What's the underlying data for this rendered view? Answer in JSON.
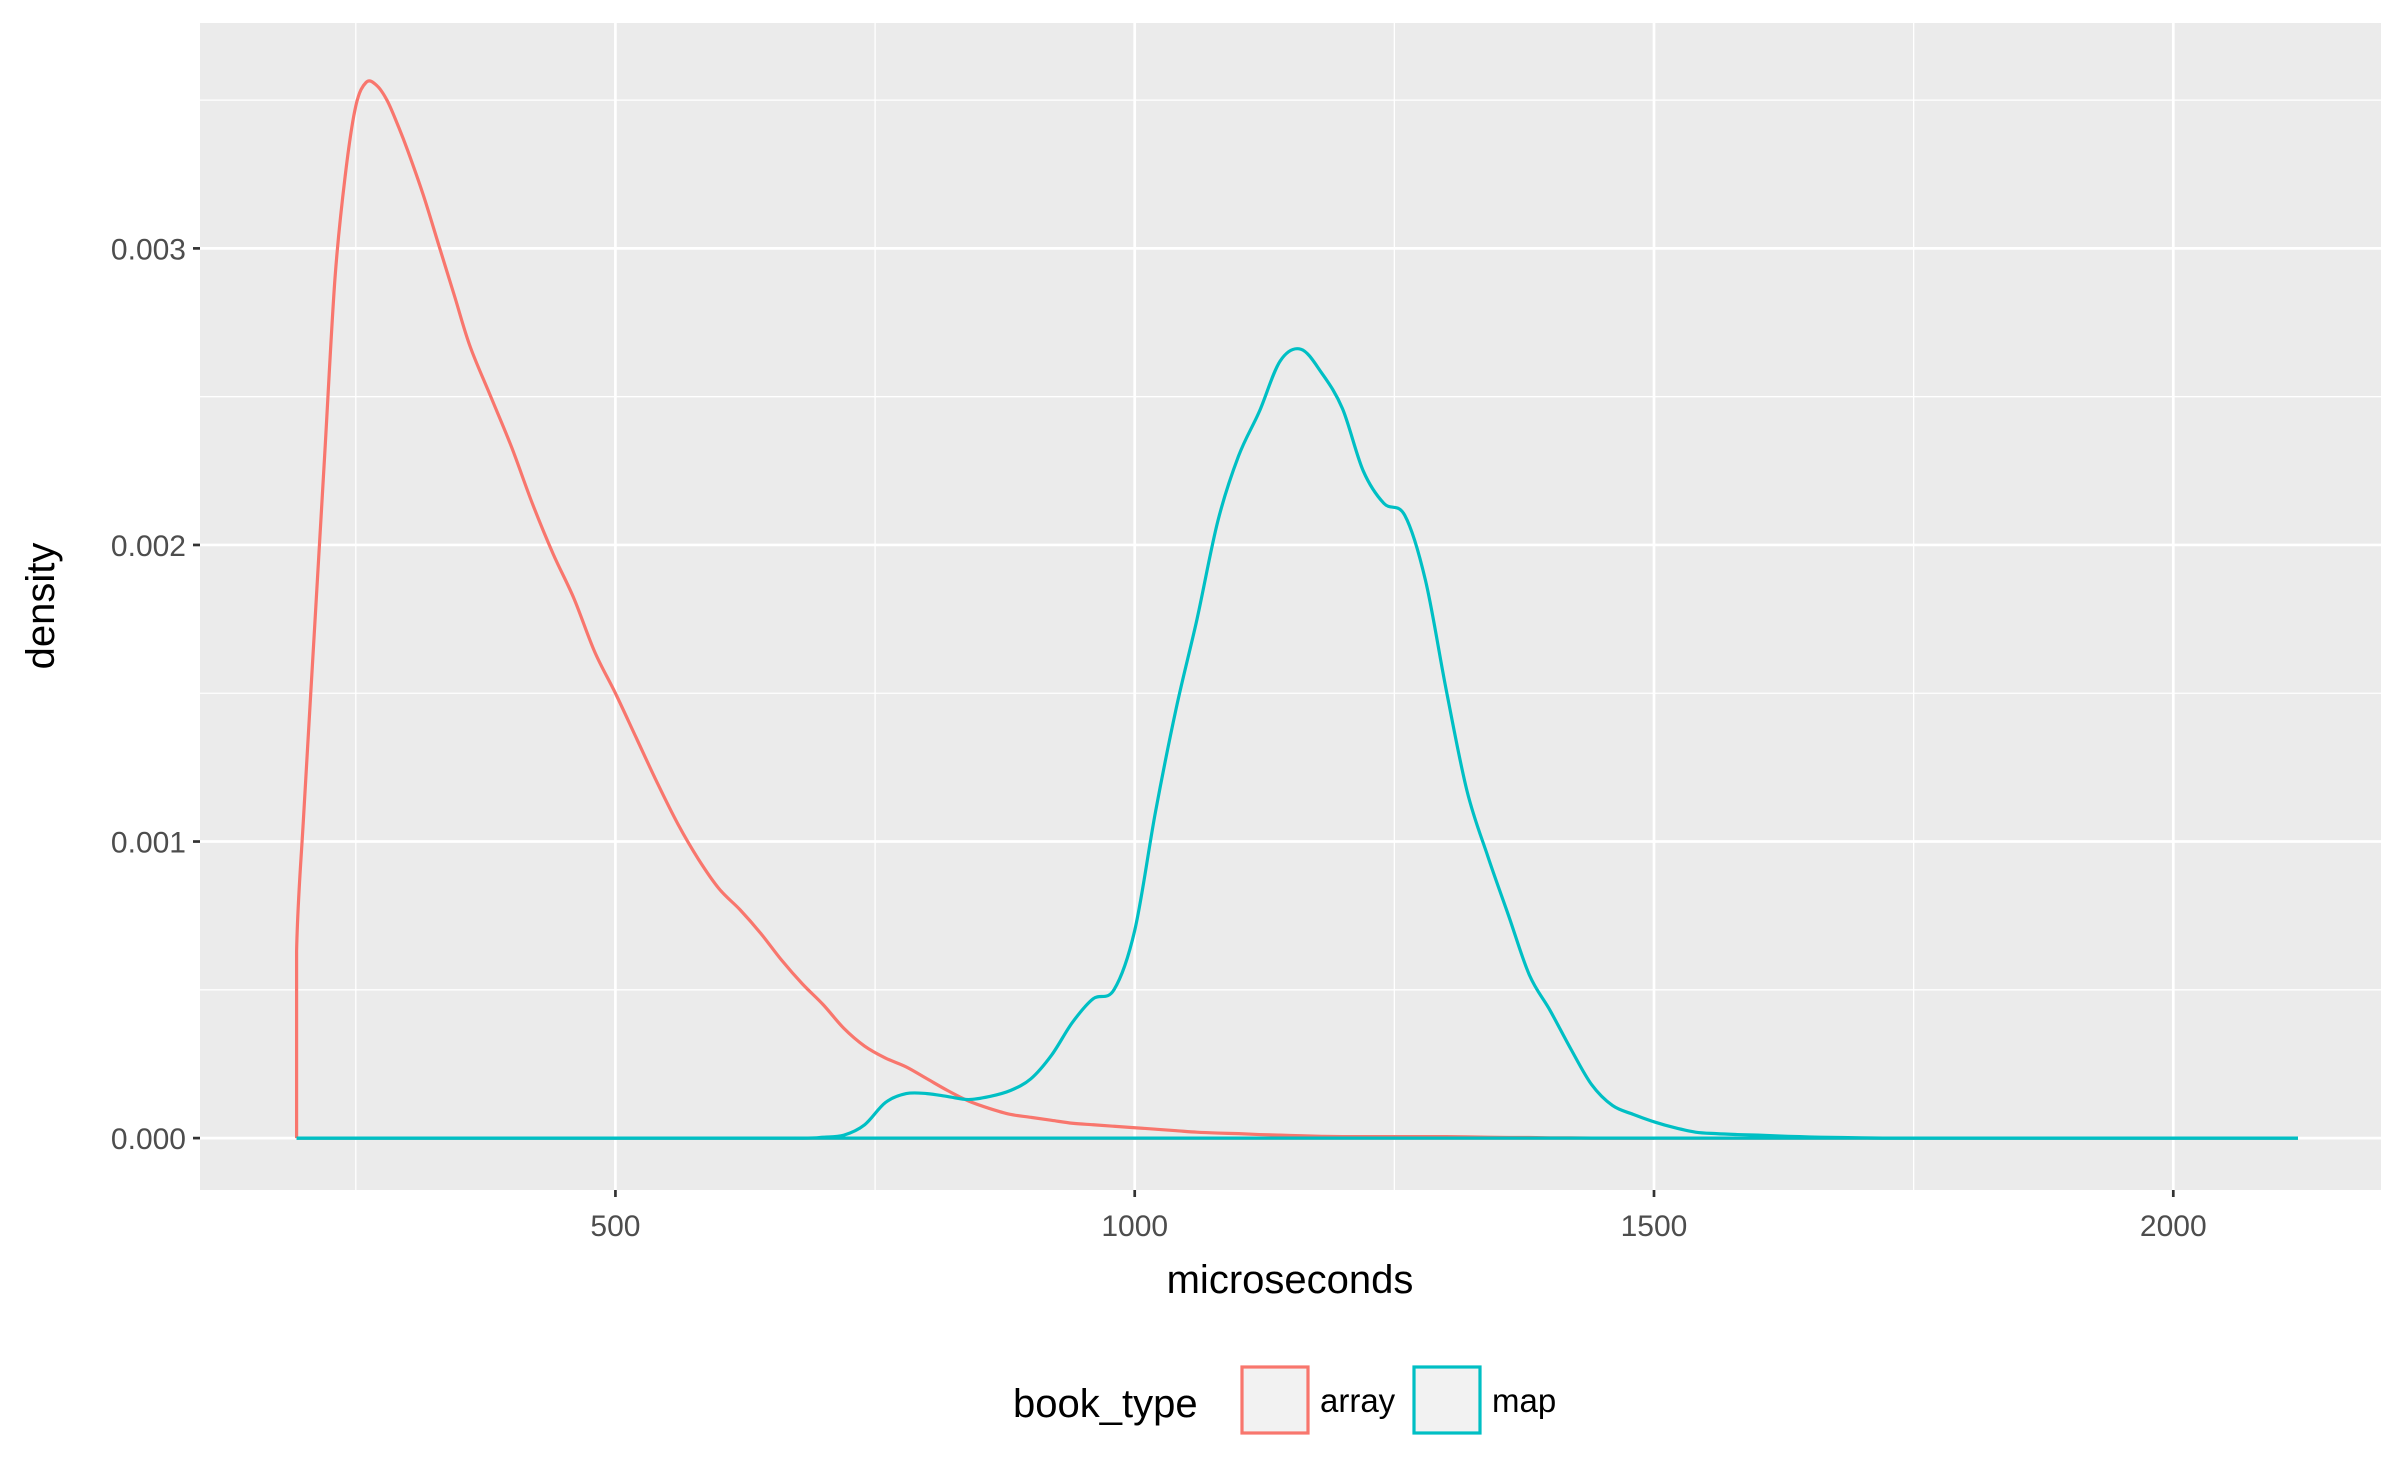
{
  "chart_data": {
    "type": "line",
    "title": "",
    "xlabel": "microseconds",
    "ylabel": "density",
    "xlim": [
      100,
      2200
    ],
    "ylim": [
      -0.000175,
      0.00376
    ],
    "x_ticks": [
      {
        "value": 500,
        "label": "500"
      },
      {
        "value": 1000,
        "label": "1000"
      },
      {
        "value": 1500,
        "label": "1500"
      },
      {
        "value": 2000,
        "label": "2000"
      }
    ],
    "x_minor_ticks": [
      250,
      750,
      1250,
      1750
    ],
    "y_ticks": [
      {
        "value": 0,
        "label": "0.000"
      },
      {
        "value": 0.001,
        "label": "0.001"
      },
      {
        "value": 0.002,
        "label": "0.002"
      },
      {
        "value": 0.003,
        "label": "0.003"
      }
    ],
    "y_minor_ticks": [
      0.0005,
      0.0015,
      0.0025,
      0.0035
    ],
    "grid": true,
    "legend": {
      "title": "book_type",
      "position": "bottom",
      "entries": [
        {
          "label": "array",
          "color": "#F8766D"
        },
        {
          "label": "map",
          "color": "#00BFC4"
        }
      ]
    },
    "series": [
      {
        "name": "array",
        "color": "#F8766D",
        "x": [
          193,
          193,
          200,
          210,
          220,
          230,
          240,
          250,
          260,
          270,
          280,
          290,
          300,
          315,
          330,
          345,
          360,
          380,
          400,
          420,
          440,
          460,
          480,
          500,
          520,
          540,
          560,
          580,
          600,
          620,
          640,
          660,
          680,
          700,
          720,
          740,
          760,
          780,
          800,
          820,
          840,
          860,
          880,
          900,
          920,
          940,
          960,
          980,
          1000,
          1020,
          1040,
          1060,
          1080,
          1100,
          1120,
          1140,
          1160,
          1180,
          1200,
          1220,
          1240,
          1260,
          1280,
          1300,
          1320,
          1340,
          1360,
          1380,
          1400,
          1420,
          1440,
          1460,
          1480,
          1500
        ],
        "y": [
          0,
          0.00063,
          0.0011,
          0.0017,
          0.0023,
          0.0029,
          0.00325,
          0.00348,
          0.00356,
          0.00355,
          0.0035,
          0.00342,
          0.00333,
          0.00318,
          0.00301,
          0.00284,
          0.00267,
          0.0025,
          0.00233,
          0.00214,
          0.00197,
          0.00182,
          0.00164,
          0.0015,
          0.00135,
          0.0012,
          0.00106,
          0.00094,
          0.00084,
          0.00077,
          0.00069,
          0.0006,
          0.00052,
          0.00045,
          0.00037,
          0.00031,
          0.00027,
          0.00024,
          0.0002,
          0.00016,
          0.000125,
          0.0001,
          8e-05,
          7e-05,
          6e-05,
          5e-05,
          4.5e-05,
          4e-05,
          3.5e-05,
          3e-05,
          2.5e-05,
          2e-05,
          1.7e-05,
          1.5e-05,
          1.2e-05,
          1e-05,
          8e-06,
          6e-06,
          5e-06,
          5e-06,
          5e-06,
          5e-06,
          5e-06,
          5e-06,
          4e-06,
          3e-06,
          2e-06,
          2e-06,
          1e-06,
          1e-06,
          0,
          0,
          0,
          0
        ]
      },
      {
        "name": "map",
        "color": "#00BFC4",
        "x": [
          193,
          600,
          680,
          700,
          720,
          740,
          760,
          780,
          800,
          820,
          840,
          860,
          880,
          900,
          920,
          940,
          960,
          980,
          1000,
          1020,
          1040,
          1060,
          1080,
          1100,
          1120,
          1140,
          1160,
          1180,
          1200,
          1220,
          1240,
          1260,
          1280,
          1300,
          1320,
          1340,
          1360,
          1380,
          1400,
          1420,
          1440,
          1460,
          1480,
          1500,
          1520,
          1540,
          1560,
          1580,
          1600,
          1620,
          1640,
          1660,
          1680,
          1700,
          1720,
          1740,
          1760,
          1780,
          1800,
          1850,
          1900,
          2000,
          2100,
          2120
        ],
        "y": [
          0,
          0,
          0,
          3e-06,
          1e-05,
          4.5e-05,
          0.00012,
          0.00015,
          0.00015,
          0.00014,
          0.00013,
          0.00014,
          0.00016,
          0.0002,
          0.00028,
          0.00039,
          0.00047,
          0.0005,
          0.0007,
          0.0011,
          0.00145,
          0.00175,
          0.00208,
          0.0023,
          0.00245,
          0.00262,
          0.00266,
          0.00258,
          0.00246,
          0.00225,
          0.00214,
          0.0021,
          0.00188,
          0.00151,
          0.00117,
          0.00095,
          0.00075,
          0.00055,
          0.00043,
          0.0003,
          0.00018,
          0.00011,
          8e-05,
          5.5e-05,
          3.5e-05,
          2e-05,
          1.5e-05,
          1.2e-05,
          1e-05,
          7e-06,
          5e-06,
          3e-06,
          2e-06,
          1e-06,
          0,
          0,
          0,
          0,
          0,
          0,
          0,
          0,
          0,
          0
        ]
      }
    ]
  }
}
